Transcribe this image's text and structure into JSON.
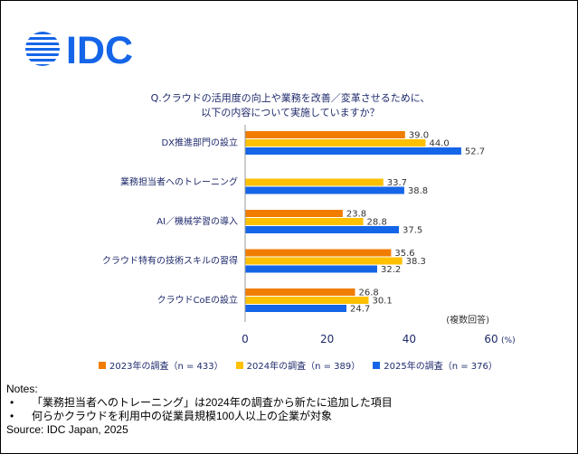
{
  "header": {
    "logo_text": "IDC",
    "title_line1": "Q.クラウドの活用度の向上や業務を改善／変革させるために、",
    "title_line2": "以下の内容について実施していますか？"
  },
  "chart_data": {
    "type": "bar",
    "orientation": "horizontal",
    "categories": [
      "DX推進部門の設立",
      "業務担当者へのトレーニング",
      "AI／機械学習の導入",
      "クラウド特有の技術スキルの習得",
      "クラウドCoEの設立"
    ],
    "series": [
      {
        "name": "2023年の調査（n = 433）",
        "color": "#f07d00",
        "values": [
          39.0,
          null,
          23.8,
          35.6,
          26.8
        ]
      },
      {
        "name": "2024年の調査（n = 389）",
        "color": "#ffc000",
        "values": [
          44.0,
          33.7,
          28.8,
          38.3,
          30.1
        ]
      },
      {
        "name": "2025年の調査（n = 376）",
        "color": "#1565e8",
        "values": [
          52.7,
          38.8,
          37.5,
          32.2,
          24.7
        ]
      }
    ],
    "value_labels": [
      [
        "39.0",
        "",
        "23.8",
        "35.6",
        "26.8"
      ],
      [
        "44.0",
        "33.7",
        "28.8",
        "38.3",
        "30.1"
      ],
      [
        "52.7",
        "38.8",
        "37.5",
        "32.2",
        "24.7"
      ]
    ],
    "xlim": [
      0,
      60
    ],
    "x_ticks": [
      "0",
      "20",
      "40",
      "60"
    ],
    "x_unit": "(%)",
    "annotation": "(複数回答)",
    "legend_position": "bottom"
  },
  "notes": {
    "heading": "Notes:",
    "bullet": "•",
    "items": [
      "「業務担当者へのトレーニング」は2024年の調査から新たに追加した項目",
      "何らかクラウドを利用中の従業員規模100人以上の企業が対象"
    ],
    "source": "Source: IDC Japan, 2025"
  }
}
